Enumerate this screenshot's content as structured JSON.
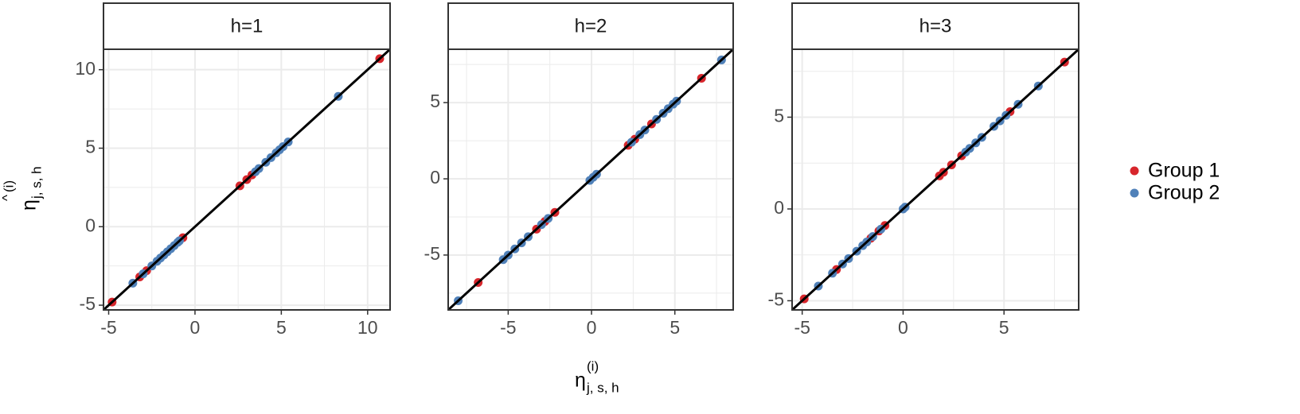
{
  "axis_titles": {
    "x": {
      "symbol": "η",
      "superscript": "(i)",
      "subscript": "j, s, h"
    },
    "y": {
      "accent": "^",
      "symbol": "η",
      "superscript": "(i)",
      "subscript": "j, s, h"
    }
  },
  "legend_position": "right",
  "chart_data": [
    {
      "type": "scatter",
      "title": "h=1",
      "xlim": [
        -5.3,
        11.3
      ],
      "ylim": [
        -5.3,
        11.3
      ],
      "xticks": [
        -5,
        0,
        5,
        10
      ],
      "yticks": [
        -5,
        0,
        5,
        10
      ],
      "grid": true,
      "identity_line": true,
      "series": [
        {
          "name": "Group 1",
          "color": "#d7262c",
          "x": [
            -4.8,
            -3.2,
            -2.8,
            -0.7,
            2.6,
            3.0,
            3.3,
            10.7
          ],
          "values": [
            -4.8,
            -3.2,
            -2.8,
            -0.7,
            2.6,
            3.0,
            3.3,
            10.7
          ]
        },
        {
          "name": "Group 2",
          "color": "#5081b9",
          "x": [
            -3.6,
            -3.0,
            -2.5,
            -2.2,
            -2.0,
            -1.8,
            -1.6,
            -1.4,
            -1.2,
            -1.0,
            -0.9,
            3.5,
            3.7,
            4.1,
            4.4,
            4.7,
            4.9,
            5.1,
            5.4,
            8.3
          ],
          "values": [
            -3.6,
            -3.0,
            -2.5,
            -2.2,
            -2.0,
            -1.8,
            -1.6,
            -1.4,
            -1.2,
            -1.0,
            -0.9,
            3.5,
            3.7,
            4.1,
            4.4,
            4.7,
            4.9,
            5.1,
            5.4,
            8.3
          ]
        }
      ]
    },
    {
      "type": "scatter",
      "title": "h=2",
      "xlim": [
        -8.6,
        8.5
      ],
      "ylim": [
        -8.6,
        8.5
      ],
      "xticks": [
        -5,
        0,
        5
      ],
      "yticks": [
        -5,
        0,
        5
      ],
      "grid": true,
      "identity_line": true,
      "series": [
        {
          "color": "#d7262c",
          "x": [
            -6.8,
            -3.3,
            -2.8,
            -2.2,
            2.2,
            2.6,
            3.6,
            6.6
          ],
          "values": [
            -6.8,
            -3.3,
            -2.8,
            -2.2,
            2.2,
            2.6,
            3.6,
            6.6
          ]
        },
        {
          "color": "#5081b9",
          "x": [
            -8.0,
            -5.3,
            -5.0,
            -4.6,
            -4.2,
            -3.8,
            -3.0,
            -2.6,
            -0.1,
            0.1,
            0.3,
            2.4,
            2.9,
            3.2,
            3.9,
            4.3,
            4.6,
            4.9,
            5.1,
            7.8
          ],
          "values": [
            -8.0,
            -5.3,
            -5.0,
            -4.6,
            -4.2,
            -3.8,
            -3.0,
            -2.6,
            -0.1,
            0.1,
            0.3,
            2.4,
            2.9,
            3.2,
            3.9,
            4.3,
            4.6,
            4.9,
            5.1,
            7.8
          ]
        }
      ]
    },
    {
      "type": "scatter",
      "title": "h=3",
      "xlim": [
        -5.5,
        8.7
      ],
      "ylim": [
        -5.5,
        8.7
      ],
      "xticks": [
        -5,
        0,
        5
      ],
      "yticks": [
        -5,
        0,
        5
      ],
      "grid": true,
      "identity_line": true,
      "series": [
        {
          "color": "#d7262c",
          "x": [
            -4.9,
            -3.3,
            -1.6,
            -1.2,
            -0.9,
            1.8,
            2.0,
            2.4,
            2.9,
            5.3,
            8.0
          ],
          "values": [
            -4.9,
            -3.3,
            -1.6,
            -1.2,
            -0.9,
            1.8,
            2.0,
            2.4,
            2.9,
            5.3,
            8.0
          ]
        },
        {
          "color": "#5081b9",
          "x": [
            -4.2,
            -3.5,
            -3.0,
            -2.7,
            -2.3,
            -2.0,
            -1.8,
            -1.5,
            -1.1,
            0.0,
            0.1,
            3.1,
            3.3,
            3.6,
            3.9,
            4.5,
            4.8,
            5.1,
            5.7,
            6.7
          ],
          "values": [
            -4.2,
            -3.5,
            -3.0,
            -2.7,
            -2.3,
            -2.0,
            -1.8,
            -1.5,
            -1.1,
            0.0,
            0.1,
            3.1,
            3.3,
            3.6,
            3.9,
            4.5,
            4.8,
            5.1,
            5.7,
            6.7
          ]
        }
      ]
    }
  ]
}
